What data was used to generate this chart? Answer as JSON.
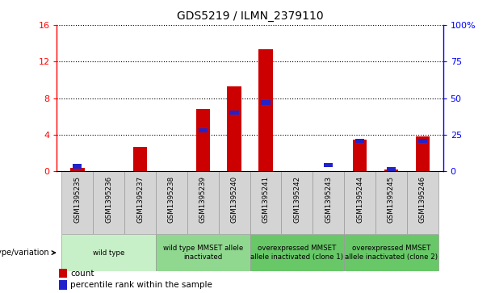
{
  "title": "GDS5219 / ILMN_2379110",
  "samples": [
    "GSM1395235",
    "GSM1395236",
    "GSM1395237",
    "GSM1395238",
    "GSM1395239",
    "GSM1395240",
    "GSM1395241",
    "GSM1395242",
    "GSM1395243",
    "GSM1395244",
    "GSM1395245",
    "GSM1395246"
  ],
  "count_values": [
    0.35,
    0.0,
    2.7,
    0.0,
    6.8,
    9.3,
    13.3,
    0.0,
    0.0,
    3.5,
    0.2,
    3.8
  ],
  "percentile_values": [
    3.5,
    0.0,
    0.0,
    0.0,
    28.0,
    40.0,
    47.0,
    0.0,
    4.5,
    21.0,
    1.5,
    21.0
  ],
  "bar_color": "#CC0000",
  "percentile_color": "#2222CC",
  "left_ylim": [
    0,
    16
  ],
  "right_ylim": [
    0,
    100
  ],
  "left_yticks": [
    0,
    4,
    8,
    12,
    16
  ],
  "right_yticks": [
    0,
    25,
    50,
    75,
    100
  ],
  "right_yticklabels": [
    "0",
    "25",
    "50",
    "75",
    "100%"
  ],
  "group_spans": [
    {
      "label": "wild type",
      "start": 0,
      "end": 2,
      "color": "#c8f0c8"
    },
    {
      "label": "wild type MMSET allele\ninactivated",
      "start": 3,
      "end": 5,
      "color": "#90d890"
    },
    {
      "label": "overexpressed MMSET\nallele inactivated (clone 1)",
      "start": 6,
      "end": 8,
      "color": "#68c868"
    },
    {
      "label": "overexpressed MMSET\nallele inactivated (clone 2)",
      "start": 9,
      "end": 11,
      "color": "#68c868"
    }
  ],
  "legend_count_label": "count",
  "legend_percentile_label": "percentile rank within the sample",
  "genotype_label": "genotype/variation",
  "bar_width": 0.45,
  "sample_row_bg": "#d4d4d4",
  "fig_width": 6.13,
  "fig_height": 3.63,
  "dpi": 100
}
